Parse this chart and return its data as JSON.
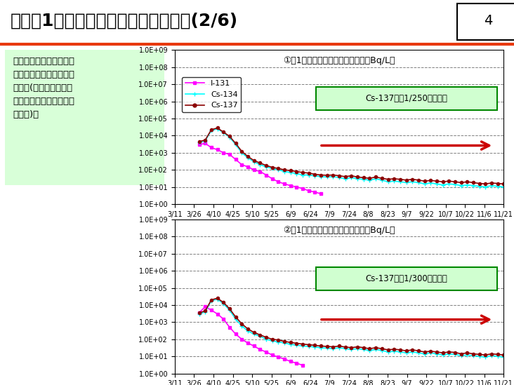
{
  "title": "海水（1号機スクリーン）放射能濃度(2/6)",
  "page_num": "4",
  "chart1_title": "①　1号機シルトスクリーン内側（Bq/L）",
  "chart2_title": "②　1号機シルトスクリーン外側（Bq/L）",
  "annotation1": "Cs-137で約1/250まで下降",
  "annotation2": "Cs-137で約1/300まで下降",
  "text_box": "現時点でセシウム放射能\n濃度の有意な変動は見ら\nれない(港湾内に閉じ込\nめられている状態と考え\nられる)。",
  "x_labels": [
    "3/11",
    "3/26",
    "4/10",
    "4/25",
    "5/10",
    "5/25",
    "6/9",
    "6/24",
    "7/9",
    "7/24",
    "8/8",
    "8/23",
    "9/7",
    "9/22",
    "10/7",
    "10/22",
    "11/6",
    "11/21"
  ],
  "ylim_log": [
    1.0,
    1000000000.0
  ],
  "colors": {
    "I131": "#FF00FF",
    "Cs134": "#00FFFF",
    "Cs137": "#8B0000",
    "bg": "#FFFFFF",
    "title_line": "#E8380D",
    "header_bg": "#FFFFFF",
    "text_box_bg": "#E0FFE0",
    "text_box_border": "#FF0000",
    "annotation_bg": "#E0FFE0",
    "annotation_border": "#008000",
    "arrow_color": "#CC0000"
  },
  "chart1": {
    "I131_x": [
      4,
      5,
      6,
      7,
      8,
      9,
      10,
      11,
      12,
      13,
      14,
      15,
      16,
      17,
      18,
      19,
      20,
      21,
      22,
      23,
      24
    ],
    "I131_y": [
      3000,
      3500,
      2000,
      1500,
      1000,
      800,
      400,
      200,
      150,
      100,
      80,
      50,
      30,
      20,
      15,
      12,
      10,
      8,
      6,
      5,
      4
    ],
    "Cs134_x": [
      4,
      5,
      6,
      7,
      8,
      9,
      10,
      11,
      12,
      13,
      14,
      15,
      16,
      17,
      18,
      19,
      20,
      21,
      22,
      23,
      24,
      25,
      26,
      27,
      28,
      29,
      30,
      31,
      32,
      33,
      34,
      35,
      36,
      37,
      38,
      39,
      40,
      41,
      42,
      43,
      44,
      45,
      46,
      47,
      48,
      49,
      50,
      51,
      52,
      53,
      54
    ],
    "Cs134_y": [
      4000,
      5000,
      20000,
      25000,
      15000,
      8000,
      3000,
      1000,
      500,
      300,
      200,
      150,
      120,
      100,
      80,
      70,
      60,
      50,
      50,
      45,
      40,
      38,
      40,
      35,
      30,
      35,
      30,
      28,
      25,
      30,
      25,
      20,
      22,
      20,
      18,
      20,
      18,
      15,
      17,
      15,
      13,
      15,
      14,
      12,
      13,
      12,
      11,
      10,
      12,
      11,
      10
    ],
    "Cs137_x": [
      4,
      5,
      6,
      7,
      8,
      9,
      10,
      11,
      12,
      13,
      14,
      15,
      16,
      17,
      18,
      19,
      20,
      21,
      22,
      23,
      24,
      25,
      26,
      27,
      28,
      29,
      30,
      31,
      32,
      33,
      34,
      35,
      36,
      37,
      38,
      39,
      40,
      41,
      42,
      43,
      44,
      45,
      46,
      47,
      48,
      49,
      50,
      51,
      52,
      53,
      54
    ],
    "Cs137_y": [
      4500,
      5500,
      22000,
      28000,
      16000,
      9000,
      3500,
      1200,
      600,
      350,
      250,
      180,
      140,
      120,
      100,
      90,
      80,
      70,
      65,
      55,
      50,
      48,
      50,
      45,
      40,
      45,
      38,
      35,
      32,
      38,
      32,
      28,
      30,
      28,
      25,
      28,
      25,
      22,
      24,
      22,
      20,
      22,
      20,
      18,
      20,
      18,
      16,
      15,
      17,
      16,
      15
    ]
  },
  "chart2": {
    "I131_x": [
      4,
      5,
      6,
      7,
      8,
      9,
      10,
      11,
      12,
      13,
      14,
      15,
      16,
      17,
      18,
      19,
      20,
      21
    ],
    "I131_y": [
      3500,
      8000,
      5000,
      3000,
      1500,
      500,
      200,
      100,
      60,
      40,
      25,
      18,
      12,
      9,
      7,
      5,
      4,
      3
    ],
    "Cs134_x": [
      4,
      5,
      6,
      7,
      8,
      9,
      10,
      11,
      12,
      13,
      14,
      15,
      16,
      17,
      18,
      19,
      20,
      21,
      22,
      23,
      24,
      25,
      26,
      27,
      28,
      29,
      30,
      31,
      32,
      33,
      34,
      35,
      36,
      37,
      38,
      39,
      40,
      41,
      42,
      43,
      44,
      45,
      46,
      47,
      48,
      49,
      50,
      51,
      52,
      53,
      54
    ],
    "Cs134_y": [
      3000,
      4000,
      18000,
      22000,
      12000,
      5000,
      1500,
      600,
      300,
      200,
      150,
      100,
      80,
      70,
      60,
      50,
      45,
      40,
      38,
      35,
      32,
      30,
      28,
      32,
      28,
      25,
      28,
      25,
      22,
      25,
      22,
      18,
      20,
      18,
      16,
      18,
      16,
      14,
      16,
      14,
      12,
      14,
      13,
      11,
      12,
      11,
      10,
      9,
      11,
      10,
      9
    ],
    "Cs137_x": [
      4,
      5,
      6,
      7,
      8,
      9,
      10,
      11,
      12,
      13,
      14,
      15,
      16,
      17,
      18,
      19,
      20,
      21,
      22,
      23,
      24,
      25,
      26,
      27,
      28,
      29,
      30,
      31,
      32,
      33,
      34,
      35,
      36,
      37,
      38,
      39,
      40,
      41,
      42,
      43,
      44,
      45,
      46,
      47,
      48,
      49,
      50,
      51,
      52,
      53,
      54
    ],
    "Cs137_y": [
      3500,
      4500,
      20000,
      25000,
      14000,
      6000,
      2000,
      800,
      400,
      250,
      180,
      130,
      100,
      90,
      75,
      65,
      58,
      52,
      48,
      44,
      40,
      38,
      36,
      40,
      35,
      32,
      36,
      32,
      28,
      32,
      28,
      24,
      26,
      24,
      21,
      24,
      21,
      18,
      20,
      18,
      16,
      18,
      17,
      14,
      16,
      14,
      13,
      12,
      14,
      13,
      12
    ]
  }
}
